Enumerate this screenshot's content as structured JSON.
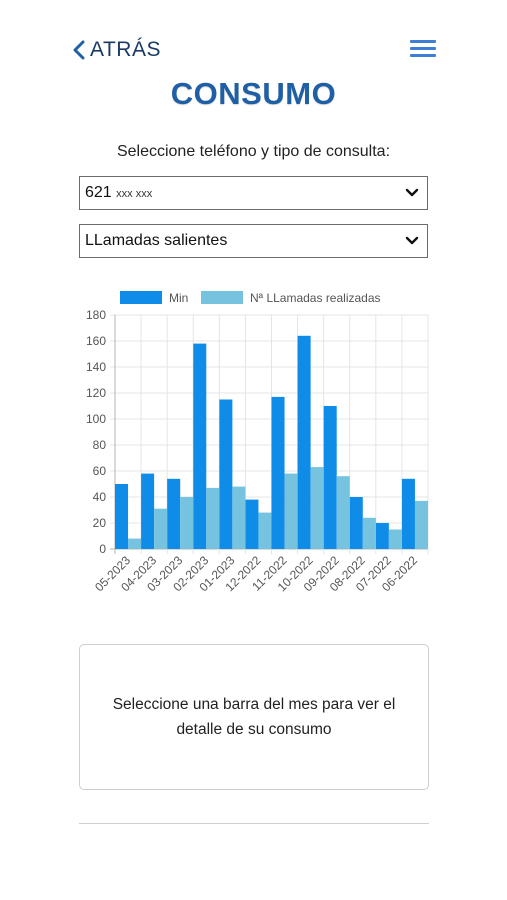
{
  "header": {
    "back_label": "ATRÁS",
    "title": "CONSUMO"
  },
  "form": {
    "prompt": "Seleccione teléfono y tipo de consulta:",
    "phone_select": {
      "prefix": "621",
      "masked": "xxx xxx"
    },
    "type_select": {
      "value": "LLamadas salientes"
    }
  },
  "chart_data": {
    "type": "bar",
    "categories": [
      "05-2023",
      "04-2023",
      "03-2023",
      "02-2023",
      "01-2023",
      "12-2022",
      "11-2022",
      "10-2022",
      "09-2022",
      "08-2022",
      "07-2022",
      "06-2022"
    ],
    "series": [
      {
        "name": "Min",
        "values": [
          50,
          58,
          54,
          158,
          115,
          38,
          117,
          164,
          110,
          40,
          20,
          54
        ],
        "color": "#0f8ce8"
      },
      {
        "name": "Nª LLamadas realizadas",
        "values": [
          8,
          31,
          40,
          47,
          48,
          28,
          58,
          63,
          56,
          24,
          15,
          37
        ],
        "color": "#76c3e0"
      }
    ],
    "yticks": [
      0,
      20,
      40,
      60,
      80,
      100,
      120,
      140,
      160,
      180
    ],
    "ylim": [
      0,
      180
    ],
    "grid": true,
    "legend": "top"
  },
  "info_box": {
    "text": "Seleccione una barra del mes para ver el detalle de su consumo"
  }
}
